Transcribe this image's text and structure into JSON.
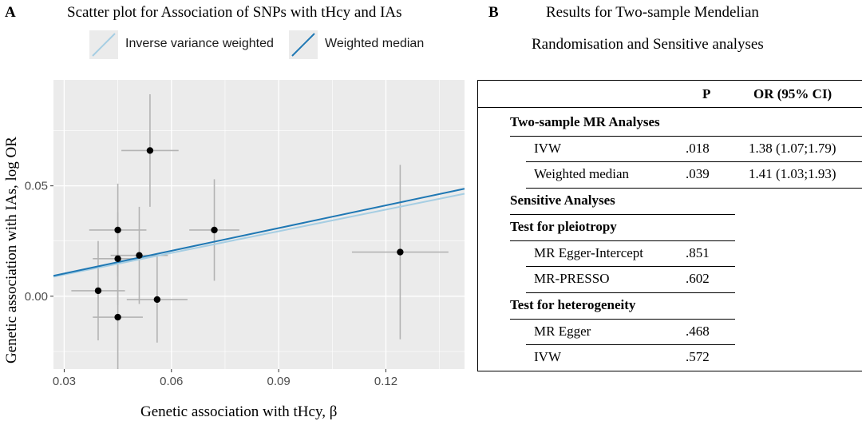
{
  "panel_a": {
    "letter": "A",
    "title": "Scatter plot for Association of SNPs with tHcy and IAs",
    "legend": [
      {
        "label": "Inverse variance weighted",
        "color": "#a6cee3"
      },
      {
        "label": "Weighted median",
        "color": "#1f78b4"
      }
    ]
  },
  "chart_data": {
    "type": "scatter",
    "xlabel": "Genetic association with tHcy, β",
    "ylabel": "Genetic association with IAs, log OR",
    "xlim": [
      0.027,
      0.142
    ],
    "ylim": [
      -0.033,
      0.098
    ],
    "x_ticks": [
      "0.03",
      "0.06",
      "0.09",
      "0.12"
    ],
    "x_tick_values": [
      0.03,
      0.06,
      0.09,
      0.12
    ],
    "y_ticks": [
      "0.00",
      "0.05"
    ],
    "y_tick_values": [
      0.0,
      0.05
    ],
    "grid": true,
    "background": "#ebebeb",
    "points": [
      {
        "x": 0.0395,
        "y": 0.0025,
        "xerr": 0.0075,
        "yerr": 0.0225
      },
      {
        "x": 0.045,
        "y": 0.03,
        "xerr": 0.008,
        "yerr": 0.021
      },
      {
        "x": 0.045,
        "y": 0.017,
        "xerr": 0.007,
        "yerr": 0.021
      },
      {
        "x": 0.045,
        "y": -0.0095,
        "xerr": 0.007,
        "yerr": 0.0235
      },
      {
        "x": 0.051,
        "y": 0.0185,
        "xerr": 0.008,
        "yerr": 0.022
      },
      {
        "x": 0.054,
        "y": 0.066,
        "xerr": 0.008,
        "yerr": 0.0255
      },
      {
        "x": 0.056,
        "y": -0.0015,
        "xerr": 0.0085,
        "yerr": 0.0195
      },
      {
        "x": 0.072,
        "y": 0.03,
        "xerr": 0.007,
        "yerr": 0.023
      },
      {
        "x": 0.124,
        "y": 0.02,
        "xerr": 0.0135,
        "yerr": 0.0395
      }
    ],
    "lines": [
      {
        "name": "Inverse variance weighted",
        "slope": 0.327,
        "color": "#a6cee3"
      },
      {
        "name": "Weighted median",
        "slope": 0.343,
        "color": "#1f78b4"
      }
    ]
  },
  "panel_b": {
    "letter": "B",
    "title_line1": "Results for Two-sample Mendelian",
    "title_line2": "Randomisation and Sensitive analyses",
    "header": {
      "p": "P",
      "or": "OR (95% CI)"
    },
    "rows": [
      {
        "label": "Two-sample MR Analyses",
        "p": "",
        "or": "",
        "kind": "section"
      },
      {
        "label": "IVW",
        "p": ".018",
        "or": "1.38 (1.07;1.79)",
        "kind": "item"
      },
      {
        "label": "Weighted median",
        "p": ".039",
        "or": "1.41 (1.03;1.93)",
        "kind": "item"
      },
      {
        "label": "Sensitive Analyses",
        "p": "",
        "or": "",
        "kind": "section"
      },
      {
        "label": "Test for pleiotropy",
        "p": "",
        "or": "",
        "kind": "section"
      },
      {
        "label": "MR Egger-Intercept",
        "p": ".851",
        "or": "",
        "kind": "item"
      },
      {
        "label": "MR-PRESSO",
        "p": ".602",
        "or": "",
        "kind": "item"
      },
      {
        "label": "Test for heterogeneity",
        "p": "",
        "or": "",
        "kind": "section"
      },
      {
        "label": "MR Egger",
        "p": ".468",
        "or": "",
        "kind": "item"
      },
      {
        "label": "IVW",
        "p": ".572",
        "or": "",
        "kind": "item"
      }
    ]
  }
}
